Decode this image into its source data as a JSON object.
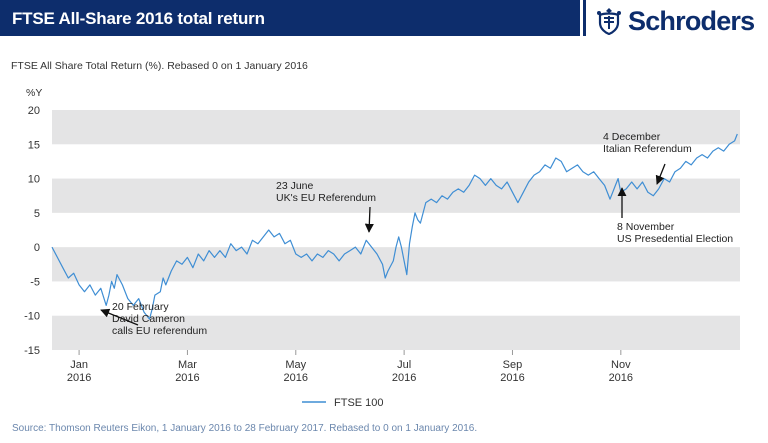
{
  "header": {
    "title": "FTSE All-Share 2016 total return",
    "logo_text": "Schroders"
  },
  "subtitle": "FTSE All Share Total Return (%). Rebased 0 on 1 January 2016",
  "unit_label": "%Y",
  "source": "Source: Thomson Reuters Eikon, 1 January 2016 to 28 February 2017. Rebased to 0 on 1 January 2016.",
  "colors": {
    "header_bg": "#0d2d6c",
    "line": "#3f8ed4",
    "band": "#e4e4e5",
    "source_text": "#6b87ad"
  },
  "chart_data": {
    "type": "line",
    "ylim": [
      -15,
      20
    ],
    "yticks": [
      20,
      15,
      10,
      5,
      0,
      -5,
      -10,
      -15
    ],
    "xticks": [
      {
        "label": "Jan",
        "year": "2016",
        "t": 0.5
      },
      {
        "label": "Mar",
        "year": "2016",
        "t": 2.5
      },
      {
        "label": "May",
        "year": "2016",
        "t": 4.5
      },
      {
        "label": "Jul",
        "year": "2016",
        "t": 6.5
      },
      {
        "label": "Sep",
        "year": "2016",
        "t": 8.5
      },
      {
        "label": "Nov",
        "year": "2016",
        "t": 10.5
      }
    ],
    "xlim": [
      0,
      12.7
    ],
    "legend": "bottom-center",
    "series": [
      {
        "name": "FTSE 100",
        "points": [
          [
            0.0,
            0.0
          ],
          [
            0.1,
            -1.5
          ],
          [
            0.2,
            -3.0
          ],
          [
            0.3,
            -4.5
          ],
          [
            0.4,
            -3.8
          ],
          [
            0.5,
            -5.5
          ],
          [
            0.6,
            -6.5
          ],
          [
            0.7,
            -5.5
          ],
          [
            0.8,
            -7.0
          ],
          [
            0.9,
            -6.0
          ],
          [
            1.0,
            -8.5
          ],
          [
            1.05,
            -7.0
          ],
          [
            1.1,
            -5.0
          ],
          [
            1.15,
            -6.0
          ],
          [
            1.2,
            -4.0
          ],
          [
            1.3,
            -5.5
          ],
          [
            1.4,
            -7.5
          ],
          [
            1.5,
            -8.5
          ],
          [
            1.6,
            -7.5
          ],
          [
            1.7,
            -9.5
          ],
          [
            1.8,
            -10.5
          ],
          [
            1.85,
            -9.0
          ],
          [
            1.9,
            -7.0
          ],
          [
            2.0,
            -6.5
          ],
          [
            2.05,
            -4.5
          ],
          [
            2.1,
            -5.5
          ],
          [
            2.2,
            -3.5
          ],
          [
            2.3,
            -2.0
          ],
          [
            2.4,
            -2.5
          ],
          [
            2.5,
            -1.5
          ],
          [
            2.6,
            -3.0
          ],
          [
            2.7,
            -1.0
          ],
          [
            2.8,
            -2.0
          ],
          [
            2.9,
            -0.5
          ],
          [
            3.0,
            -1.5
          ],
          [
            3.1,
            -0.5
          ],
          [
            3.2,
            -1.5
          ],
          [
            3.3,
            0.5
          ],
          [
            3.4,
            -0.5
          ],
          [
            3.5,
            0.0
          ],
          [
            3.6,
            -1.0
          ],
          [
            3.7,
            1.0
          ],
          [
            3.8,
            0.5
          ],
          [
            3.9,
            1.5
          ],
          [
            4.0,
            2.5
          ],
          [
            4.1,
            1.5
          ],
          [
            4.2,
            2.0
          ],
          [
            4.3,
            0.5
          ],
          [
            4.4,
            1.0
          ],
          [
            4.5,
            -1.0
          ],
          [
            4.6,
            -1.5
          ],
          [
            4.7,
            -1.0
          ],
          [
            4.8,
            -2.0
          ],
          [
            4.9,
            -1.0
          ],
          [
            5.0,
            -1.5
          ],
          [
            5.1,
            -0.5
          ],
          [
            5.2,
            -1.0
          ],
          [
            5.3,
            -2.0
          ],
          [
            5.4,
            -1.0
          ],
          [
            5.5,
            -0.5
          ],
          [
            5.6,
            0.0
          ],
          [
            5.7,
            -1.0
          ],
          [
            5.8,
            1.0
          ],
          [
            5.9,
            0.0
          ],
          [
            6.0,
            -1.0
          ],
          [
            6.1,
            -2.5
          ],
          [
            6.15,
            -4.5
          ],
          [
            6.2,
            -3.5
          ],
          [
            6.3,
            -2.0
          ],
          [
            6.35,
            0.0
          ],
          [
            6.4,
            1.5
          ],
          [
            6.45,
            0.0
          ],
          [
            6.5,
            -2.0
          ],
          [
            6.55,
            -4.0
          ],
          [
            6.6,
            0.5
          ],
          [
            6.65,
            3.0
          ],
          [
            6.7,
            5.0
          ],
          [
            6.75,
            4.0
          ],
          [
            6.8,
            3.5
          ],
          [
            6.85,
            5.0
          ],
          [
            6.9,
            6.5
          ],
          [
            7.0,
            7.0
          ],
          [
            7.1,
            6.5
          ],
          [
            7.2,
            7.5
          ],
          [
            7.3,
            7.0
          ],
          [
            7.4,
            8.0
          ],
          [
            7.5,
            8.5
          ],
          [
            7.6,
            8.0
          ],
          [
            7.7,
            9.0
          ],
          [
            7.8,
            10.5
          ],
          [
            7.9,
            10.0
          ],
          [
            8.0,
            9.0
          ],
          [
            8.1,
            10.0
          ],
          [
            8.2,
            9.0
          ],
          [
            8.3,
            8.5
          ],
          [
            8.4,
            9.5
          ],
          [
            8.5,
            8.0
          ],
          [
            8.6,
            6.5
          ],
          [
            8.7,
            8.0
          ],
          [
            8.8,
            9.5
          ],
          [
            8.9,
            10.5
          ],
          [
            9.0,
            11.0
          ],
          [
            9.1,
            12.0
          ],
          [
            9.2,
            11.5
          ],
          [
            9.3,
            13.0
          ],
          [
            9.4,
            12.5
          ],
          [
            9.5,
            11.0
          ],
          [
            9.6,
            11.5
          ],
          [
            9.7,
            12.0
          ],
          [
            9.8,
            11.0
          ],
          [
            9.9,
            10.5
          ],
          [
            10.0,
            11.0
          ],
          [
            10.1,
            10.0
          ],
          [
            10.2,
            9.0
          ],
          [
            10.3,
            7.0
          ],
          [
            10.35,
            8.0
          ],
          [
            10.4,
            9.0
          ],
          [
            10.45,
            10.0
          ],
          [
            10.5,
            8.0
          ],
          [
            10.6,
            8.5
          ],
          [
            10.7,
            9.5
          ],
          [
            10.8,
            8.5
          ],
          [
            10.9,
            9.5
          ],
          [
            11.0,
            8.0
          ],
          [
            11.1,
            7.5
          ],
          [
            11.2,
            8.5
          ],
          [
            11.3,
            10.0
          ],
          [
            11.4,
            9.5
          ],
          [
            11.5,
            11.0
          ],
          [
            11.6,
            11.5
          ],
          [
            11.7,
            12.5
          ],
          [
            11.8,
            12.0
          ],
          [
            11.9,
            13.0
          ],
          [
            12.0,
            13.5
          ],
          [
            12.1,
            13.0
          ],
          [
            12.2,
            14.0
          ],
          [
            12.3,
            14.5
          ],
          [
            12.4,
            14.0
          ],
          [
            12.5,
            15.0
          ],
          [
            12.6,
            15.5
          ],
          [
            12.65,
            16.5
          ]
        ]
      }
    ],
    "annotations": [
      {
        "lines": [
          "20 February",
          "David Cameron",
          "calls EU referendum"
        ]
      },
      {
        "lines": [
          "23 June",
          "UK's EU Referendum"
        ]
      },
      {
        "lines": [
          "4 December",
          "Italian Referendum"
        ]
      },
      {
        "lines": [
          "8 November",
          "US Presedential Election"
        ]
      }
    ]
  }
}
